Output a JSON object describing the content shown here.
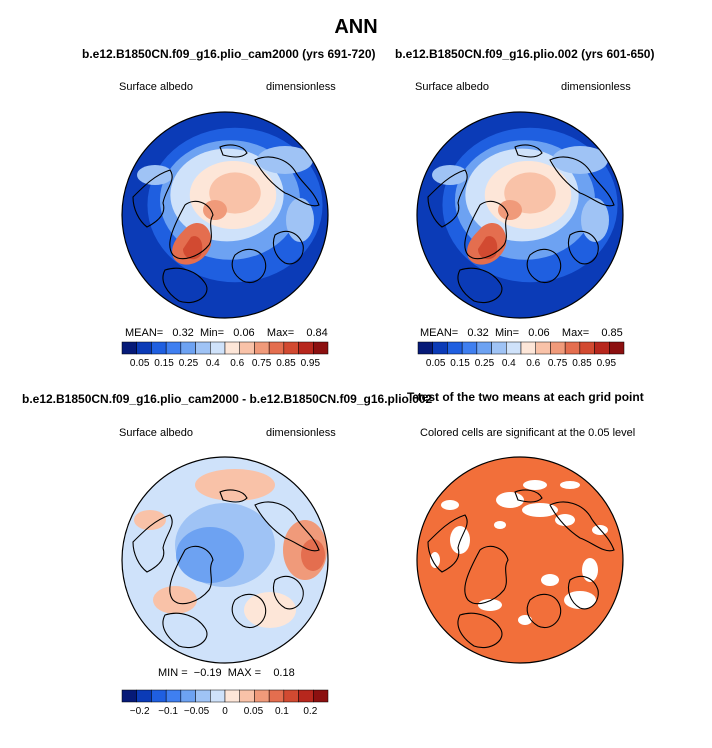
{
  "figure_title": "ANN",
  "colors": {
    "albedo_scale": [
      "#061a78",
      "#0b3bb7",
      "#1f5fe0",
      "#3f7ff0",
      "#6da2f2",
      "#9fc3f5",
      "#cfe2fa",
      "#fde6d8",
      "#f9c2a8",
      "#f09a7a",
      "#e46e4f",
      "#d24a31",
      "#b7271d",
      "#8c1010"
    ],
    "diff_scale": [
      "#061a78",
      "#0b3bb7",
      "#1f5fe0",
      "#3f7ff0",
      "#6da2f2",
      "#9fc3f5",
      "#cfe2fa",
      "#fde6d8",
      "#f9c2a8",
      "#f09a7a",
      "#e46e4f",
      "#d24a31",
      "#b7271d",
      "#8c1010"
    ],
    "signif": "#f26f3a",
    "insig": "#ffffff"
  },
  "panels": [
    {
      "title": "b.e12.B1850CN.f09_g16.plio_cam2000 (yrs 691-720)",
      "variable": "Surface albedo",
      "units": "dimensionless",
      "stats": {
        "mean_label": "MEAN=",
        "mean": "0.32",
        "min_label": "Min=",
        "min": "0.06",
        "max_label": "Max=",
        "max": "0.84"
      },
      "colorbar_labels": [
        "0.05",
        "0.15",
        "0.25",
        "0.4",
        "0.6",
        "0.75",
        "0.85",
        "0.95"
      ]
    },
    {
      "title": "b.e12.B1850CN.f09_g16.plio.002 (yrs 601-650)",
      "variable": "Surface albedo",
      "units": "dimensionless",
      "stats": {
        "mean_label": "MEAN=",
        "mean": "0.32",
        "min_label": "Min=",
        "min": "0.06",
        "max_label": "Max=",
        "max": "0.85"
      },
      "colorbar_labels": [
        "0.05",
        "0.15",
        "0.25",
        "0.4",
        "0.6",
        "0.75",
        "0.85",
        "0.95"
      ]
    },
    {
      "title": "b.e12.B1850CN.f09_g16.plio_cam2000 - b.e12.B1850CN.f09_g16.plio.002",
      "variable": "Surface albedo",
      "units": "dimensionless",
      "stats": {
        "min_label": "MIN =",
        "min": "−0.19",
        "max_label": "MAX =",
        "max": "0.18"
      },
      "colorbar_labels": [
        "−0.2",
        "−0.1",
        "−0.05",
        "0",
        "0.05",
        "0.1",
        "0.2"
      ]
    },
    {
      "title": "T-test of the two means at each grid point",
      "note": "Colored cells are significant at the 0.05 level"
    }
  ],
  "chart_data": [
    {
      "type": "heatmap",
      "title": "b.e12.B1850CN.f09_g16.plio_cam2000 (yrs 691-720)",
      "field": "Surface albedo",
      "units": "dimensionless",
      "projection": "north polar stereographic",
      "mean": 0.32,
      "min": 0.06,
      "max": 0.84,
      "contour_levels": [
        0.05,
        0.1,
        0.15,
        0.2,
        0.25,
        0.3,
        0.4,
        0.5,
        0.6,
        0.7,
        0.75,
        0.8,
        0.85,
        0.9,
        0.95
      ]
    },
    {
      "type": "heatmap",
      "title": "b.e12.B1850CN.f09_g16.plio.002 (yrs 601-650)",
      "field": "Surface albedo",
      "units": "dimensionless",
      "projection": "north polar stereographic",
      "mean": 0.32,
      "min": 0.06,
      "max": 0.85,
      "contour_levels": [
        0.05,
        0.1,
        0.15,
        0.2,
        0.25,
        0.3,
        0.4,
        0.5,
        0.6,
        0.7,
        0.75,
        0.8,
        0.85,
        0.9,
        0.95
      ]
    },
    {
      "type": "heatmap",
      "title": "b.e12.B1850CN.f09_g16.plio_cam2000 - b.e12.B1850CN.f09_g16.plio.002",
      "field": "Surface albedo",
      "units": "dimensionless",
      "projection": "north polar stereographic",
      "min": -0.19,
      "max": 0.18,
      "contour_levels": [
        -0.2,
        -0.15,
        -0.1,
        -0.075,
        -0.05,
        -0.025,
        0,
        0.025,
        0.05,
        0.075,
        0.1,
        0.15,
        0.2
      ]
    },
    {
      "type": "heatmap",
      "title": "T-test of the two means at each grid point",
      "note": "Colored cells are significant at the 0.05 level",
      "projection": "north polar stereographic",
      "significance_level": 0.05
    }
  ]
}
